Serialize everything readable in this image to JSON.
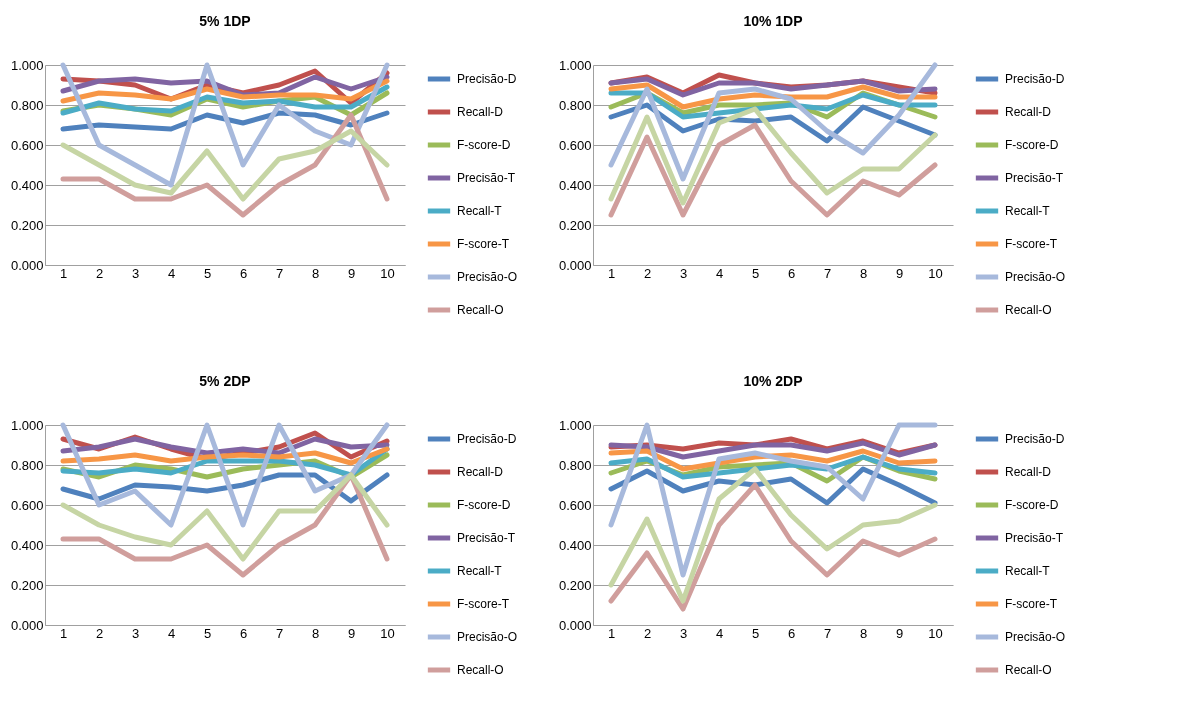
{
  "chart_data": [
    {
      "type": "line",
      "title": "5% 1DP",
      "categories": [
        "1",
        "2",
        "3",
        "4",
        "5",
        "6",
        "7",
        "8",
        "9",
        "10"
      ],
      "ylim": [
        0,
        1
      ],
      "yticks": [
        {
          "value": 0,
          "label": "0.000"
        },
        {
          "value": 0.2,
          "label": "0.200"
        },
        {
          "value": 0.4,
          "label": "0.400"
        },
        {
          "value": 0.6,
          "label": "0.600"
        },
        {
          "value": 0.8,
          "label": "0.800"
        },
        {
          "value": 1,
          "label": "1.000"
        }
      ],
      "grid": "y",
      "legend": "right",
      "series": [
        {
          "name": "Precisão-D",
          "color": "#4f81bd",
          "values": [
            0.68,
            0.7,
            0.69,
            0.68,
            0.75,
            0.71,
            0.76,
            0.75,
            0.7,
            0.76
          ]
        },
        {
          "name": "Recall-D",
          "color": "#c0504d",
          "values": [
            0.93,
            0.92,
            0.9,
            0.83,
            0.9,
            0.86,
            0.9,
            0.97,
            0.81,
            0.96
          ]
        },
        {
          "name": "F-score-D",
          "color": "#9bbb59",
          "values": [
            0.77,
            0.8,
            0.78,
            0.75,
            0.83,
            0.79,
            0.82,
            0.84,
            0.75,
            0.86
          ]
        },
        {
          "name": "Precisão-T",
          "color": "#8064a2",
          "values": [
            0.87,
            0.92,
            0.93,
            0.91,
            0.92,
            0.85,
            0.86,
            0.94,
            0.88,
            0.94
          ]
        },
        {
          "name": "Recall-T",
          "color": "#4bacc6",
          "values": [
            0.76,
            0.81,
            0.78,
            0.77,
            0.84,
            0.81,
            0.82,
            0.79,
            0.79,
            0.89
          ]
        },
        {
          "name": "F-score-T",
          "color": "#f79646",
          "values": [
            0.82,
            0.86,
            0.85,
            0.83,
            0.88,
            0.84,
            0.85,
            0.85,
            0.83,
            0.92
          ]
        },
        {
          "name": "Precisão-O",
          "color": "#a7b9dc",
          "values": [
            1.0,
            0.6,
            0.5,
            0.4,
            1.0,
            0.5,
            0.8,
            0.67,
            0.6,
            1.0
          ]
        },
        {
          "name": "Recall-O",
          "color": "#d09e9c",
          "values": [
            0.43,
            0.43,
            0.33,
            0.33,
            0.4,
            0.25,
            0.4,
            0.5,
            0.75,
            0.33
          ]
        },
        {
          "color": "#c6d5a4",
          "values": [
            0.6,
            0.5,
            0.4,
            0.36,
            0.57,
            0.33,
            0.53,
            0.57,
            0.67,
            0.5
          ]
        }
      ]
    },
    {
      "type": "line",
      "title": "10% 1DP",
      "categories": [
        "1",
        "2",
        "3",
        "4",
        "5",
        "6",
        "7",
        "8",
        "9",
        "10"
      ],
      "ylim": [
        0,
        1
      ],
      "yticks": [
        {
          "value": 0,
          "label": "0.000"
        },
        {
          "value": 0.2,
          "label": "0.200"
        },
        {
          "value": 0.4,
          "label": "0.400"
        },
        {
          "value": 0.6,
          "label": "0.600"
        },
        {
          "value": 0.8,
          "label": "0.800"
        },
        {
          "value": 1,
          "label": "1.000"
        }
      ],
      "grid": "y",
      "legend": "right",
      "series": [
        {
          "name": "Precisão-D",
          "color": "#4f81bd",
          "values": [
            0.74,
            0.8,
            0.67,
            0.73,
            0.72,
            0.74,
            0.62,
            0.79,
            0.72,
            0.65
          ]
        },
        {
          "name": "Recall-D",
          "color": "#c0504d",
          "values": [
            0.91,
            0.94,
            0.86,
            0.95,
            0.91,
            0.89,
            0.9,
            0.92,
            0.89,
            0.86
          ]
        },
        {
          "name": "F-score-D",
          "color": "#9bbb59",
          "values": [
            0.79,
            0.86,
            0.76,
            0.8,
            0.8,
            0.81,
            0.74,
            0.86,
            0.8,
            0.74
          ]
        },
        {
          "name": "Precisão-T",
          "color": "#8064a2",
          "values": [
            0.91,
            0.93,
            0.85,
            0.91,
            0.91,
            0.88,
            0.9,
            0.92,
            0.87,
            0.88
          ]
        },
        {
          "name": "Recall-T",
          "color": "#4bacc6",
          "values": [
            0.86,
            0.86,
            0.74,
            0.76,
            0.78,
            0.8,
            0.78,
            0.85,
            0.8,
            0.8
          ]
        },
        {
          "name": "F-score-T",
          "color": "#f79646",
          "values": [
            0.88,
            0.9,
            0.79,
            0.83,
            0.85,
            0.84,
            0.84,
            0.89,
            0.84,
            0.84
          ]
        },
        {
          "name": "Precisão-O",
          "color": "#a7b9dc",
          "values": [
            0.5,
            0.88,
            0.43,
            0.86,
            0.88,
            0.83,
            0.67,
            0.56,
            0.75,
            1.0
          ]
        },
        {
          "name": "Recall-O",
          "color": "#d09e9c",
          "values": [
            0.25,
            0.64,
            0.25,
            0.6,
            0.7,
            0.42,
            0.25,
            0.42,
            0.35,
            0.5
          ]
        },
        {
          "color": "#c6d5a4",
          "values": [
            0.33,
            0.74,
            0.31,
            0.71,
            0.78,
            0.56,
            0.36,
            0.48,
            0.48,
            0.65
          ]
        }
      ]
    },
    {
      "type": "line",
      "title": "5% 2DP",
      "categories": [
        "1",
        "2",
        "3",
        "4",
        "5",
        "6",
        "7",
        "8",
        "9",
        "10"
      ],
      "ylim": [
        0,
        1
      ],
      "yticks": [
        {
          "value": 0,
          "label": "0.000"
        },
        {
          "value": 0.2,
          "label": "0.200"
        },
        {
          "value": 0.4,
          "label": "0.400"
        },
        {
          "value": 0.6,
          "label": "0.600"
        },
        {
          "value": 0.8,
          "label": "0.800"
        },
        {
          "value": 1,
          "label": "1.000"
        }
      ],
      "grid": "y",
      "legend": "right",
      "series": [
        {
          "name": "Precisão-D",
          "color": "#4f81bd",
          "values": [
            0.68,
            0.63,
            0.7,
            0.69,
            0.67,
            0.7,
            0.75,
            0.75,
            0.62,
            0.75
          ]
        },
        {
          "name": "Recall-D",
          "color": "#c0504d",
          "values": [
            0.93,
            0.88,
            0.94,
            0.88,
            0.83,
            0.86,
            0.89,
            0.96,
            0.84,
            0.92
          ]
        },
        {
          "name": "F-score-D",
          "color": "#9bbb59",
          "values": [
            0.78,
            0.74,
            0.8,
            0.78,
            0.74,
            0.78,
            0.8,
            0.82,
            0.74,
            0.85
          ]
        },
        {
          "name": "Precisão-T",
          "color": "#8064a2",
          "values": [
            0.87,
            0.89,
            0.93,
            0.89,
            0.86,
            0.88,
            0.86,
            0.93,
            0.89,
            0.9
          ]
        },
        {
          "name": "Recall-T",
          "color": "#4bacc6",
          "values": [
            0.77,
            0.76,
            0.78,
            0.76,
            0.82,
            0.82,
            0.82,
            0.8,
            0.75,
            0.88
          ]
        },
        {
          "name": "F-score-T",
          "color": "#f79646",
          "values": [
            0.82,
            0.83,
            0.85,
            0.82,
            0.84,
            0.85,
            0.84,
            0.86,
            0.81,
            0.88
          ]
        },
        {
          "name": "Precisão-O",
          "color": "#a7b9dc",
          "values": [
            1.0,
            0.6,
            0.67,
            0.5,
            1.0,
            0.5,
            1.0,
            0.67,
            0.75,
            1.0
          ]
        },
        {
          "name": "Recall-O",
          "color": "#d09e9c",
          "values": [
            0.43,
            0.43,
            0.33,
            0.33,
            0.4,
            0.25,
            0.4,
            0.5,
            0.75,
            0.33
          ]
        },
        {
          "color": "#c6d5a4",
          "values": [
            0.6,
            0.5,
            0.44,
            0.4,
            0.57,
            0.33,
            0.57,
            0.57,
            0.75,
            0.5
          ]
        }
      ]
    },
    {
      "type": "line",
      "title": "10% 2DP",
      "categories": [
        "1",
        "2",
        "3",
        "4",
        "5",
        "6",
        "7",
        "8",
        "9",
        "10"
      ],
      "ylim": [
        0,
        1
      ],
      "yticks": [
        {
          "value": 0,
          "label": "0.000"
        },
        {
          "value": 0.2,
          "label": "0.200"
        },
        {
          "value": 0.4,
          "label": "0.400"
        },
        {
          "value": 0.6,
          "label": "0.600"
        },
        {
          "value": 0.8,
          "label": "0.800"
        },
        {
          "value": 1,
          "label": "1.000"
        }
      ],
      "grid": "y",
      "legend": "right",
      "series": [
        {
          "name": "Precisão-D",
          "color": "#4f81bd",
          "values": [
            0.68,
            0.77,
            0.67,
            0.72,
            0.7,
            0.73,
            0.61,
            0.78,
            0.7,
            0.61
          ]
        },
        {
          "name": "Recall-D",
          "color": "#c0504d",
          "values": [
            0.89,
            0.9,
            0.88,
            0.91,
            0.9,
            0.93,
            0.88,
            0.92,
            0.86,
            0.9
          ]
        },
        {
          "name": "F-score-D",
          "color": "#9bbb59",
          "values": [
            0.76,
            0.82,
            0.75,
            0.79,
            0.8,
            0.81,
            0.72,
            0.84,
            0.77,
            0.73
          ]
        },
        {
          "name": "Precisão-T",
          "color": "#8064a2",
          "values": [
            0.9,
            0.89,
            0.84,
            0.87,
            0.9,
            0.9,
            0.87,
            0.91,
            0.85,
            0.9
          ]
        },
        {
          "name": "Recall-T",
          "color": "#4bacc6",
          "values": [
            0.81,
            0.83,
            0.74,
            0.76,
            0.78,
            0.8,
            0.78,
            0.84,
            0.78,
            0.76
          ]
        },
        {
          "name": "F-score-T",
          "color": "#f79646",
          "values": [
            0.86,
            0.87,
            0.78,
            0.81,
            0.84,
            0.85,
            0.82,
            0.87,
            0.81,
            0.82
          ]
        },
        {
          "name": "Precisão-O",
          "color": "#a7b9dc",
          "values": [
            0.5,
            1.0,
            0.25,
            0.83,
            0.86,
            0.82,
            0.79,
            0.63,
            1.0,
            1.0
          ]
        },
        {
          "name": "Recall-O",
          "color": "#d09e9c",
          "values": [
            0.12,
            0.36,
            0.08,
            0.5,
            0.7,
            0.42,
            0.25,
            0.42,
            0.35,
            0.43
          ]
        },
        {
          "color": "#c6d5a4",
          "values": [
            0.2,
            0.53,
            0.12,
            0.63,
            0.78,
            0.55,
            0.38,
            0.5,
            0.52,
            0.6
          ]
        }
      ]
    }
  ]
}
